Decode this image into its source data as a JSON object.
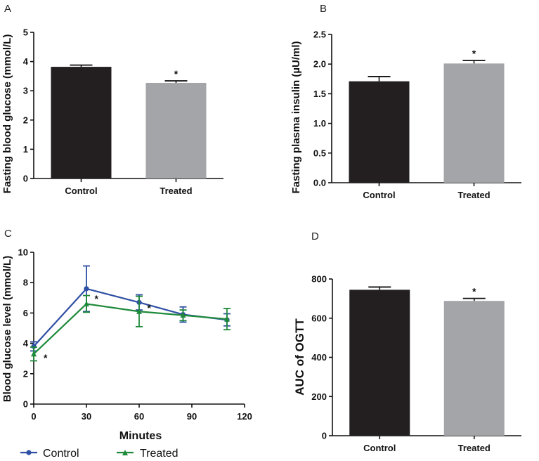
{
  "chart_data": [
    {
      "panel": "A",
      "type": "bar",
      "categories": [
        "Control",
        "Treated"
      ],
      "values": [
        3.82,
        3.27
      ],
      "errors": [
        0.06,
        0.07
      ],
      "colors": [
        "#231f20",
        "#a3a5a8"
      ],
      "significance": [
        "",
        "*"
      ],
      "ylabel": "Fasting blood glucose (mmol/L)",
      "ylim": [
        0,
        5
      ],
      "yticks": [
        0,
        1,
        2,
        3,
        4,
        5
      ],
      "ytick_labels": [
        "0",
        "1",
        "2",
        "3",
        "4",
        "5"
      ]
    },
    {
      "panel": "B",
      "type": "bar",
      "categories": [
        "Control",
        "Treated"
      ],
      "values": [
        1.71,
        2.01
      ],
      "errors": [
        0.08,
        0.05
      ],
      "colors": [
        "#231f20",
        "#a3a5a8"
      ],
      "significance": [
        "",
        "*"
      ],
      "ylabel": "Fasting plasma insulin (µU/ml)",
      "ylim": [
        0,
        2.5
      ],
      "yticks": [
        0,
        0.5,
        1,
        1.5,
        2,
        2.5
      ],
      "ytick_labels": [
        "0.0",
        "0.5",
        "1.0",
        "1.5",
        "2.0",
        "2.5"
      ]
    },
    {
      "panel": "C",
      "type": "line",
      "xlabel": "Minutes",
      "ylabel": "Blood glucose level (mmol/L)",
      "xlim": [
        0,
        120
      ],
      "ylim": [
        0,
        10
      ],
      "xticks": [
        0,
        30,
        60,
        90,
        120
      ],
      "xtick_labels": [
        "0",
        "30",
        "60",
        "90",
        "120"
      ],
      "yticks": [
        0,
        2,
        4,
        6,
        8,
        10
      ],
      "ytick_labels": [
        "0",
        "2",
        "4",
        "6",
        "8",
        "10"
      ],
      "series": [
        {
          "name": "Control",
          "color": "#2e4fa3",
          "marker": "circle",
          "x": [
            0,
            30,
            60,
            85,
            110
          ],
          "y": [
            3.8,
            7.6,
            6.7,
            5.9,
            5.55
          ],
          "errors": [
            0.3,
            1.5,
            0.5,
            0.5,
            0.4
          ]
        },
        {
          "name": "Treated",
          "color": "#1f8a3b",
          "marker": "triangle",
          "x": [
            0,
            30,
            60,
            85,
            110
          ],
          "y": [
            3.3,
            6.6,
            6.1,
            5.85,
            5.6
          ],
          "errors": [
            0.45,
            0.55,
            1.0,
            0.35,
            0.7
          ]
        }
      ],
      "annotations": [
        {
          "text": "*",
          "x": 4,
          "y": 3.0
        },
        {
          "text": "*",
          "x": 33,
          "y": 6.9
        },
        {
          "text": "*",
          "x": 63,
          "y": 6.3
        }
      ]
    },
    {
      "panel": "D",
      "type": "bar",
      "categories": [
        "Control",
        "Treated"
      ],
      "values": [
        745,
        688
      ],
      "errors": [
        14,
        13
      ],
      "colors": [
        "#231f20",
        "#a3a5a8"
      ],
      "significance": [
        "",
        "*"
      ],
      "ylabel": "AUC of OGTT",
      "ylim": [
        0,
        800
      ],
      "yticks": [
        0,
        200,
        400,
        600,
        800
      ],
      "ytick_labels": [
        "0",
        "200",
        "400",
        "600",
        "800"
      ]
    }
  ]
}
